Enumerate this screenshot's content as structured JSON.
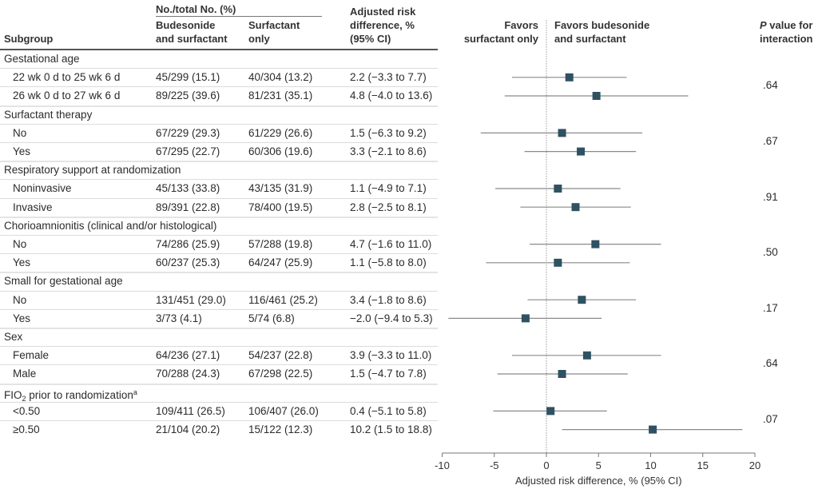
{
  "header": {
    "subgroup": "Subgroup",
    "counts_group": "No./total No. (%)",
    "budesonide_line1": "Budesonide",
    "budesonide_line2": "and surfactant",
    "surfactant_line1": "Surfactant",
    "surfactant_line2": "only",
    "adj_line1": "Adjusted risk",
    "adj_line2": "difference, %",
    "adj_line3": "(95% CI)",
    "favors_left_line1": "Favors",
    "favors_left_line2": "surfactant only",
    "favors_right_line1": "Favors budesonide",
    "favors_right_line2": "and surfactant",
    "p_line1_italic": "P",
    "p_line1_rest": " value for",
    "p_line2": "interaction"
  },
  "groups": [
    {
      "label": "Gestational age",
      "p": ".64",
      "rows": [
        {
          "label": "22 wk 0 d to 25 wk 6 d",
          "bud": "45/299 (15.1)",
          "surf": "40/304 (13.2)",
          "diff": "2.2 (−3.3 to 7.7)",
          "est": 2.2,
          "lo": -3.3,
          "hi": 7.7
        },
        {
          "label": "26 wk 0 d to 27 wk 6 d",
          "bud": "89/225 (39.6)",
          "surf": "81/231 (35.1)",
          "diff": "4.8 (−4.0 to 13.6)",
          "est": 4.8,
          "lo": -4.0,
          "hi": 13.6
        }
      ]
    },
    {
      "label": "Surfactant therapy",
      "p": ".67",
      "rows": [
        {
          "label": "No",
          "bud": "67/229 (29.3)",
          "surf": "61/229 (26.6)",
          "diff": "1.5 (−6.3 to 9.2)",
          "est": 1.5,
          "lo": -6.3,
          "hi": 9.2
        },
        {
          "label": "Yes",
          "bud": "67/295 (22.7)",
          "surf": "60/306 (19.6)",
          "diff": "3.3 (−2.1 to 8.6)",
          "est": 3.3,
          "lo": -2.1,
          "hi": 8.6
        }
      ]
    },
    {
      "label": "Respiratory support at randomization",
      "p": ".91",
      "rows": [
        {
          "label": "Noninvasive",
          "bud": "45/133 (33.8)",
          "surf": "43/135 (31.9)",
          "diff": "1.1 (−4.9 to 7.1)",
          "est": 1.1,
          "lo": -4.9,
          "hi": 7.1
        },
        {
          "label": "Invasive",
          "bud": "89/391 (22.8)",
          "surf": "78/400 (19.5)",
          "diff": "2.8 (−2.5 to 8.1)",
          "est": 2.8,
          "lo": -2.5,
          "hi": 8.1
        }
      ]
    },
    {
      "label": "Chorioamnionitis (clinical and/or histological)",
      "p": ".50",
      "rows": [
        {
          "label": "No",
          "bud": "74/286 (25.9)",
          "surf": "57/288 (19.8)",
          "diff": "4.7 (−1.6 to 11.0)",
          "est": 4.7,
          "lo": -1.6,
          "hi": 11.0
        },
        {
          "label": "Yes",
          "bud": "60/237 (25.3)",
          "surf": "64/247 (25.9)",
          "diff": "1.1 (−5.8 to 8.0)",
          "est": 1.1,
          "lo": -5.8,
          "hi": 8.0
        }
      ]
    },
    {
      "label": "Small for gestational age",
      "p": ".17",
      "rows": [
        {
          "label": "No",
          "bud": "131/451 (29.0)",
          "surf": "116/461 (25.2)",
          "diff": "3.4 (−1.8 to 8.6)",
          "est": 3.4,
          "lo": -1.8,
          "hi": 8.6
        },
        {
          "label": "Yes",
          "bud": "3/73 (4.1)",
          "surf": "5/74 (6.8)",
          "diff": "−2.0 (−9.4 to 5.3)",
          "est": -2.0,
          "lo": -9.4,
          "hi": 5.3
        }
      ]
    },
    {
      "label": "Sex",
      "p": ".64",
      "rows": [
        {
          "label": "Female",
          "bud": "64/236 (27.1)",
          "surf": "54/237 (22.8)",
          "diff": "3.9 (−3.3 to 11.0)",
          "est": 3.9,
          "lo": -3.3,
          "hi": 11.0
        },
        {
          "label": "Male",
          "bud": "70/288 (24.3)",
          "surf": "67/298 (22.5)",
          "diff": "1.5 (−4.7 to 7.8)",
          "est": 1.5,
          "lo": -4.7,
          "hi": 7.8
        }
      ]
    },
    {
      "label_main": "FIO",
      "label_sub": "2",
      "label_rest": " prior to randomization",
      "label_sup": "a",
      "p": ".07",
      "rows": [
        {
          "label": "<0.50",
          "bud": "109/411 (26.5)",
          "surf": "106/407 (26.0)",
          "diff": "0.4 (−5.1 to 5.8)",
          "est": 0.4,
          "lo": -5.1,
          "hi": 5.8
        },
        {
          "label": "≥0.50",
          "bud": "21/104 (20.2)",
          "surf": "15/122 (12.3)",
          "diff": "10.2 (1.5 to 18.8)",
          "est": 10.2,
          "lo": 1.5,
          "hi": 18.8
        }
      ]
    }
  ],
  "colors": {
    "marker": "#2e5262",
    "ci_line": "#8a8a8a",
    "ref_line": "#9a9a9a"
  },
  "chart_data": {
    "type": "scatter",
    "subtype": "forest",
    "title": "",
    "xlabel": "Adjusted risk difference, % (95% CI)",
    "xlim": [
      -10,
      20
    ],
    "xticks": [
      -10,
      -5,
      0,
      5,
      10,
      15,
      20
    ],
    "xtick_labels": [
      "-10",
      "-5",
      "0",
      "5",
      "10",
      "15",
      "20"
    ],
    "reference_line": 0,
    "annotations": [
      "Favors surfactant only",
      "Favors budesonide and surfactant"
    ],
    "series": [
      {
        "name": "22 wk 0 d to 25 wk 6 d",
        "est": 2.2,
        "lo": -3.3,
        "hi": 7.7
      },
      {
        "name": "26 wk 0 d to 27 wk 6 d",
        "est": 4.8,
        "lo": -4.0,
        "hi": 13.6
      },
      {
        "name": "Surfactant therapy: No",
        "est": 1.5,
        "lo": -6.3,
        "hi": 9.2
      },
      {
        "name": "Surfactant therapy: Yes",
        "est": 3.3,
        "lo": -2.1,
        "hi": 8.6
      },
      {
        "name": "Noninvasive",
        "est": 1.1,
        "lo": -4.9,
        "hi": 7.1
      },
      {
        "name": "Invasive",
        "est": 2.8,
        "lo": -2.5,
        "hi": 8.1
      },
      {
        "name": "Chorioamnionitis: No",
        "est": 4.7,
        "lo": -1.6,
        "hi": 11.0
      },
      {
        "name": "Chorioamnionitis: Yes",
        "est": 1.1,
        "lo": -5.8,
        "hi": 8.0
      },
      {
        "name": "Small for gestational age: No",
        "est": 3.4,
        "lo": -1.8,
        "hi": 8.6
      },
      {
        "name": "Small for gestational age: Yes",
        "est": -2.0,
        "lo": -9.4,
        "hi": 5.3
      },
      {
        "name": "Female",
        "est": 3.9,
        "lo": -3.3,
        "hi": 11.0
      },
      {
        "name": "Male",
        "est": 1.5,
        "lo": -4.7,
        "hi": 7.8
      },
      {
        "name": "<0.50",
        "est": 0.4,
        "lo": -5.1,
        "hi": 5.8
      },
      {
        "name": "≥0.50",
        "est": 10.2,
        "lo": 1.5,
        "hi": 18.8
      }
    ]
  }
}
